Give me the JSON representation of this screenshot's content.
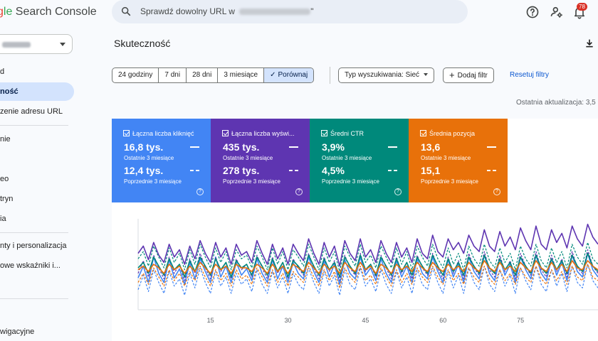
{
  "app": {
    "title_g": "g",
    "title_le": "le",
    "title_rest": " Search Console"
  },
  "search": {
    "placeholder": "Sprawdź dowolny URL w ",
    "placeholder_end": "\""
  },
  "notifications": {
    "count": "78"
  },
  "icons": {
    "search": "search-icon",
    "help": "help-icon",
    "account": "manage-accounts-icon",
    "bell": "notifications-icon",
    "download": "download-icon",
    "dropdown": "arrow-drop-down-icon",
    "check": "check-icon",
    "plus": "plus-icon"
  },
  "sidebar": {
    "items": [
      {
        "label": "d",
        "active": false
      },
      {
        "label": "ność",
        "active": true
      },
      {
        "label": "zenie adresu URL",
        "active": false
      },
      {
        "label": "nie",
        "active": false
      },
      {
        "label": "",
        "active": false
      },
      {
        "label": "eo",
        "active": false
      },
      {
        "label": "tryn",
        "active": false
      },
      {
        "label": "ia",
        "active": false
      },
      {
        "label": "nty i personalizacja",
        "active": false
      },
      {
        "label": "owe wskaźniki i...",
        "active": false
      },
      {
        "label": "wigacyjne",
        "active": false
      }
    ]
  },
  "page": {
    "title": "Skuteczność",
    "last_update": "Ostatnia aktualizacja: 3,5"
  },
  "filters": {
    "ranges": [
      {
        "label": "24 godziny",
        "selected": false
      },
      {
        "label": "7 dni",
        "selected": false
      },
      {
        "label": "28 dni",
        "selected": false
      },
      {
        "label": "3 miesiące",
        "selected": false
      },
      {
        "label": "Porównaj",
        "selected": true
      }
    ],
    "search_type": "Typ wyszukiwania: Sieć",
    "add_filter": "Dodaj filtr",
    "reset": "Resetuj filtry"
  },
  "colors": {
    "clicks": "#4285f4",
    "impressions": "#5e35b1",
    "ctr": "#00897b",
    "position": "#e8710a",
    "accent": "#0b57d0"
  },
  "metrics": [
    {
      "name": "Łączna liczba kliknięć",
      "current": "16,8 tys.",
      "current_label": "Ostatnie 3 miesiące",
      "previous": "12,4 tys.",
      "previous_label": "Poprzednie 3 miesiące"
    },
    {
      "name": "Łączna liczba wyświ...",
      "current": "435 tys.",
      "current_label": "Ostatnie 3 miesiące",
      "previous": "278 tys.",
      "previous_label": "Poprzednie 3 miesiące"
    },
    {
      "name": "Średni CTR",
      "current": "3,9%",
      "current_label": "Ostatnie 3 miesiące",
      "previous": "4,5%",
      "previous_label": "Poprzednie 3 miesiące"
    },
    {
      "name": "Średnia pozycja",
      "current": "13,6",
      "current_label": "Ostatnie 3 miesiące",
      "previous": "15,1",
      "previous_label": "Poprzednie 3 miesiące"
    }
  ],
  "chart_data": {
    "type": "line",
    "x_ticks": [
      15,
      30,
      45,
      60,
      75
    ],
    "xlim": [
      1,
      90
    ],
    "ylim": [
      0,
      100
    ],
    "series": [
      {
        "metric": "clicks",
        "period": "current",
        "color": "#4285f4",
        "dashed": false,
        "values": [
          35,
          48,
          30,
          58,
          40,
          30,
          55,
          35,
          45,
          28,
          52,
          34,
          56,
          42,
          30,
          58,
          36,
          48,
          30,
          52,
          38,
          45,
          32,
          56,
          40,
          30,
          55,
          34,
          48,
          30,
          52,
          40,
          34,
          58,
          42,
          30,
          54,
          36,
          50,
          28,
          55,
          40,
          34,
          58,
          38,
          46,
          32,
          56,
          40,
          30,
          54,
          36,
          48,
          30,
          56,
          40,
          34,
          58,
          42,
          30,
          55,
          36,
          50,
          30,
          58,
          42,
          34,
          60,
          40,
          32,
          56,
          38,
          50,
          30,
          58,
          44,
          34,
          60,
          40,
          32,
          56,
          38,
          52,
          32,
          60,
          42,
          36,
          62,
          44,
          36
        ]
      },
      {
        "metric": "clicks",
        "period": "previous",
        "color": "#4285f4",
        "dashed": true,
        "values": [
          22,
          38,
          20,
          44,
          30,
          18,
          42,
          26,
          34,
          16,
          40,
          24,
          46,
          30,
          18,
          42,
          26,
          36,
          18,
          40,
          28,
          34,
          20,
          44,
          28,
          18,
          42,
          24,
          36,
          18,
          40,
          28,
          22,
          46,
          30,
          18,
          42,
          26,
          38,
          16,
          44,
          28,
          22,
          46,
          26,
          34,
          20,
          44,
          28,
          18,
          42,
          24,
          36,
          18,
          44,
          28,
          22,
          46,
          30,
          18,
          42,
          24,
          38,
          18,
          46,
          30,
          22,
          48,
          28,
          20,
          44,
          26,
          38,
          18,
          46,
          32,
          22,
          48,
          28,
          20,
          44,
          26,
          40,
          20,
          48,
          30,
          24,
          50,
          32,
          24
        ]
      },
      {
        "metric": "impressions",
        "period": "current",
        "color": "#5e35b1",
        "dashed": false,
        "values": [
          62,
          70,
          55,
          74,
          60,
          52,
          72,
          58,
          66,
          50,
          70,
          56,
          76,
          62,
          52,
          74,
          58,
          68,
          50,
          72,
          60,
          64,
          52,
          76,
          62,
          50,
          72,
          56,
          68,
          50,
          72,
          62,
          54,
          78,
          62,
          50,
          74,
          58,
          70,
          48,
          76,
          62,
          54,
          78,
          58,
          66,
          52,
          76,
          62,
          52,
          74,
          58,
          68,
          52,
          78,
          62,
          56,
          82,
          64,
          58,
          78,
          66,
          74,
          62,
          82,
          70,
          64,
          88,
          70,
          64,
          86,
          70,
          80,
          66,
          90,
          76,
          66,
          92,
          72,
          66,
          88,
          74,
          84,
          68,
          92,
          78,
          70,
          94,
          80,
          72
        ]
      },
      {
        "metric": "impressions",
        "period": "previous",
        "color": "#5e35b1",
        "dashed": true,
        "values": [
          40,
          54,
          36,
          60,
          46,
          34,
          58,
          40,
          50,
          32,
          56,
          40,
          62,
          46,
          34,
          58,
          42,
          52,
          34,
          56,
          44,
          50,
          36,
          60,
          46,
          34,
          58,
          40,
          52,
          34,
          56,
          46,
          38,
          62,
          46,
          34,
          58,
          42,
          54,
          32,
          60,
          46,
          38,
          62,
          42,
          50,
          36,
          60,
          46,
          34,
          58,
          40,
          52,
          34,
          60,
          46,
          38,
          62,
          46,
          34,
          58,
          40,
          54,
          34,
          62,
          46,
          38,
          64,
          44,
          36,
          60,
          42,
          54,
          34,
          62,
          48,
          38,
          64,
          44,
          36,
          60,
          42,
          56,
          36,
          64,
          46,
          40,
          66,
          48,
          40
        ]
      },
      {
        "metric": "ctr",
        "period": "current",
        "color": "#00897b",
        "dashed": false,
        "values": [
          46,
          52,
          40,
          58,
          48,
          38,
          56,
          44,
          50,
          36,
          54,
          42,
          58,
          48,
          38,
          56,
          44,
          52,
          36,
          54,
          46,
          50,
          38,
          58,
          48,
          38,
          56,
          42,
          52,
          36,
          54,
          48,
          40,
          60,
          48,
          38,
          56,
          44,
          52,
          36,
          58,
          48,
          40,
          60,
          44,
          50,
          38,
          58,
          48,
          38,
          56,
          42,
          52,
          38,
          58,
          48,
          40,
          60,
          48,
          38,
          56,
          42,
          52,
          38,
          58,
          48,
          40,
          60,
          46,
          40,
          56,
          44,
          52,
          38,
          58,
          48,
          40,
          60,
          46,
          40,
          56,
          44,
          54,
          40,
          60,
          48,
          42,
          62,
          48,
          42
        ]
      },
      {
        "metric": "ctr",
        "period": "previous",
        "color": "#00897b",
        "dashed": true,
        "values": [
          56,
          64,
          48,
          70,
          58,
          46,
          68,
          52,
          62,
          44,
          66,
          50,
          72,
          58,
          46,
          68,
          52,
          64,
          44,
          66,
          56,
          60,
          46,
          70,
          58,
          44,
          68,
          50,
          64,
          44,
          66,
          58,
          48,
          72,
          58,
          44,
          68,
          52,
          64,
          42,
          70,
          58,
          48,
          72,
          52,
          60,
          46,
          70,
          58,
          46,
          68,
          50,
          64,
          44,
          70,
          58,
          48,
          72,
          56,
          46,
          68,
          50,
          62,
          44,
          70,
          56,
          48,
          72,
          54,
          46,
          68,
          52,
          62,
          44,
          70,
          56,
          48,
          72,
          54,
          46,
          68,
          52,
          64,
          46,
          72,
          58,
          50,
          74,
          56,
          50
        ]
      },
      {
        "metric": "position",
        "period": "current",
        "color": "#e8710a",
        "dashed": false,
        "values": [
          44,
          48,
          42,
          50,
          46,
          40,
          50,
          44,
          48,
          40,
          48,
          42,
          52,
          46,
          40,
          50,
          44,
          48,
          40,
          50,
          46,
          46,
          42,
          50,
          46,
          40,
          50,
          42,
          48,
          40,
          50,
          46,
          42,
          52,
          46,
          40,
          50,
          44,
          48,
          40,
          52,
          46,
          42,
          52,
          44,
          48,
          40,
          50,
          46,
          40,
          50,
          44,
          48,
          42,
          52,
          46,
          42,
          52,
          46,
          42,
          50,
          44,
          48,
          42,
          52,
          46,
          42,
          54,
          46,
          42,
          52,
          44,
          48,
          42,
          52,
          46,
          42,
          54,
          46,
          42,
          52,
          44,
          50,
          42,
          54,
          46,
          44,
          54,
          48,
          44
        ]
      },
      {
        "metric": "position",
        "period": "previous",
        "color": "#e8710a",
        "dashed": true,
        "values": [
          30,
          40,
          28,
          46,
          36,
          26,
          44,
          32,
          40,
          26,
          42,
          32,
          48,
          36,
          26,
          44,
          32,
          40,
          26,
          44,
          34,
          38,
          28,
          46,
          36,
          26,
          44,
          30,
          40,
          26,
          42,
          36,
          30,
          48,
          36,
          26,
          44,
          32,
          42,
          24,
          46,
          36,
          30,
          48,
          32,
          38,
          28,
          46,
          36,
          26,
          44,
          30,
          40,
          28,
          46,
          36,
          30,
          48,
          36,
          28,
          44,
          32,
          40,
          28,
          46,
          36,
          30,
          48,
          34,
          28,
          44,
          32,
          40,
          28,
          46,
          36,
          30,
          48,
          34,
          28,
          44,
          32,
          42,
          28,
          48,
          36,
          32,
          50,
          36,
          32
        ]
      }
    ]
  }
}
